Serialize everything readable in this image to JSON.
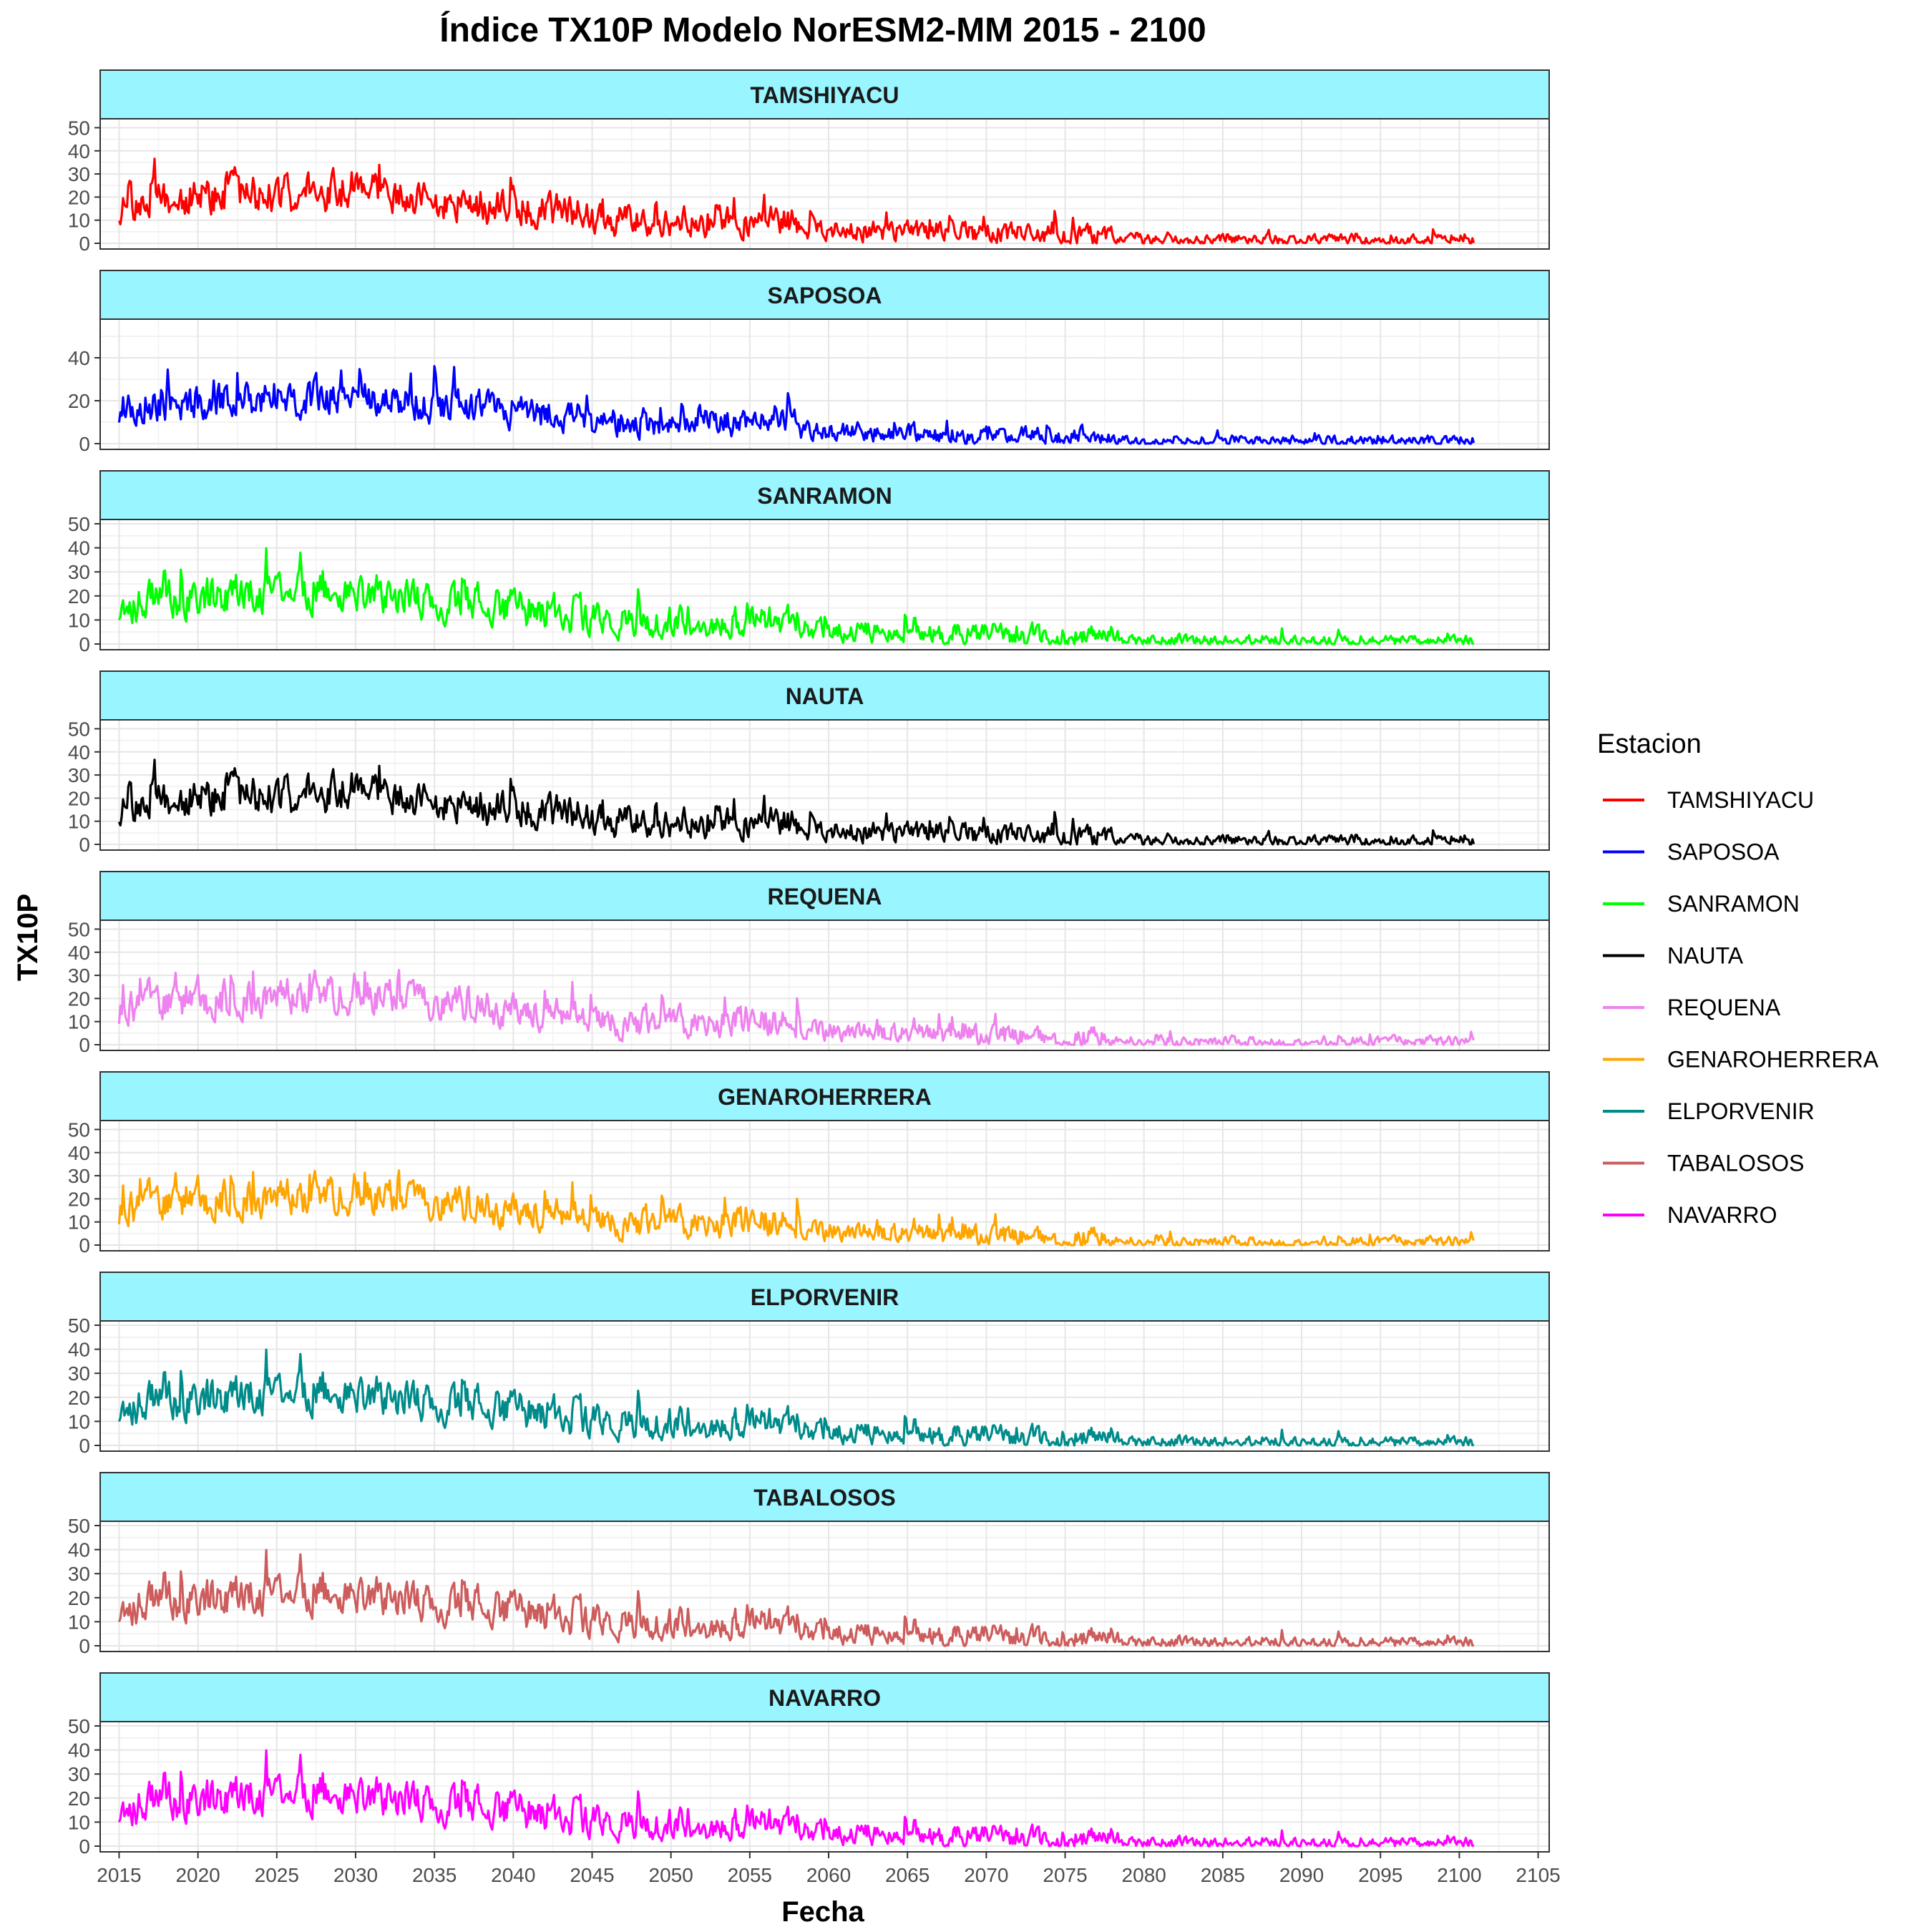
{
  "chart_data": {
    "type": "line",
    "title": "Índice TX10P Modelo NorESM2-MM 2015 - 2100",
    "xlabel": "Fecha",
    "ylabel": "TX10P",
    "x_range": [
      2015,
      2101
    ],
    "x_ticks": [
      "2015",
      "2020",
      "2025",
      "2030",
      "2035",
      "2040",
      "2045",
      "2050",
      "2055",
      "2060",
      "2065",
      "2070",
      "2075",
      "2080",
      "2085",
      "2090",
      "2095",
      "2100",
      "2105"
    ],
    "grid": true,
    "legend": {
      "title": "Estacion",
      "position": "right"
    },
    "series": [
      {
        "name": "TAMSHIYACU",
        "color": "#FF0000",
        "ylim": [
          0,
          52
        ],
        "y_ticks": [
          "0",
          "10",
          "20",
          "30",
          "40",
          "50"
        ],
        "seed": 11,
        "peak": 51
      },
      {
        "name": "SAPOSOA",
        "color": "#0000FF",
        "ylim": [
          0,
          56
        ],
        "y_ticks": [
          "0",
          "20",
          "40"
        ],
        "seed": 23,
        "peak": 55
      },
      {
        "name": "SANRAMON",
        "color": "#00FF00",
        "ylim": [
          0,
          50
        ],
        "y_ticks": [
          "0",
          "10",
          "20",
          "30",
          "40",
          "50"
        ],
        "seed": 37,
        "peak": 48
      },
      {
        "name": "NAUTA",
        "color": "#000000",
        "ylim": [
          0,
          52
        ],
        "y_ticks": [
          "0",
          "10",
          "20",
          "30",
          "40",
          "50"
        ],
        "seed": 11,
        "peak": 51
      },
      {
        "name": "REQUENA",
        "color": "#EE82EE",
        "ylim": [
          0,
          52
        ],
        "y_ticks": [
          "0",
          "10",
          "20",
          "30",
          "40",
          "50"
        ],
        "seed": 53,
        "peak": 51
      },
      {
        "name": "GENAROHERRERA",
        "color": "#FFA500",
        "ylim": [
          0,
          52
        ],
        "y_ticks": [
          "0",
          "10",
          "20",
          "30",
          "40",
          "50"
        ],
        "seed": 53,
        "peak": 51
      },
      {
        "name": "ELPORVENIR",
        "color": "#008B8B",
        "ylim": [
          0,
          50
        ],
        "y_ticks": [
          "0",
          "10",
          "20",
          "30",
          "40",
          "50"
        ],
        "seed": 37,
        "peak": 48
      },
      {
        "name": "TABALOSOS",
        "color": "#CD5C5C",
        "ylim": [
          0,
          50
        ],
        "y_ticks": [
          "0",
          "10",
          "20",
          "30",
          "40",
          "50"
        ],
        "seed": 37,
        "peak": 48
      },
      {
        "name": "NAVARRO",
        "color": "#FF00FF",
        "ylim": [
          0,
          50
        ],
        "y_ticks": [
          "0",
          "10",
          "20",
          "30",
          "40",
          "50"
        ],
        "seed": 37,
        "peak": 48
      }
    ],
    "trend_note": "Monthly TX10P series declining from ~20-50 (2015-2040) to ~0-10 (2080-2100)",
    "strip_color": "#99F5FF"
  }
}
